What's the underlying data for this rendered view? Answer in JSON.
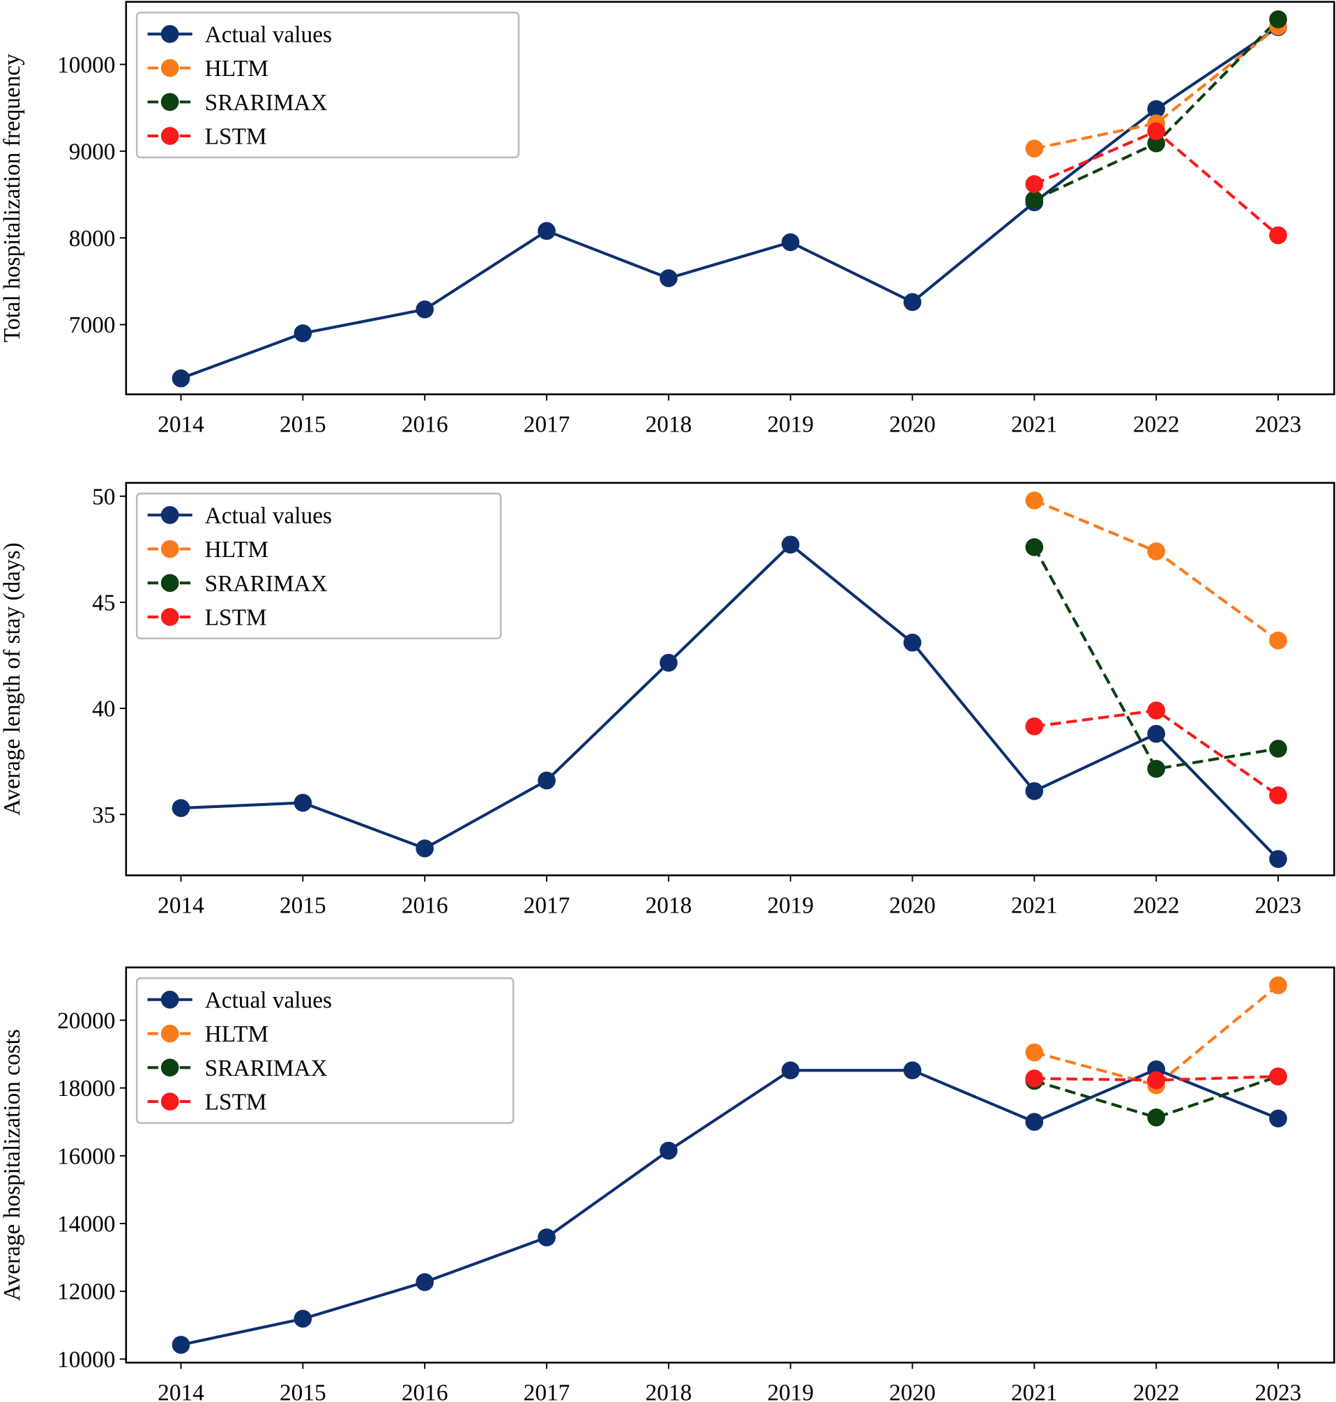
{
  "chart_data": [
    {
      "type": "line",
      "ylabel": "Total hospitalization frequency",
      "x": [
        2014,
        2015,
        2016,
        2017,
        2018,
        2019,
        2020,
        2021,
        2022,
        2023
      ],
      "xlim": [
        2013.55,
        2023.46
      ],
      "xticks": [
        2014,
        2015,
        2016,
        2017,
        2018,
        2019,
        2020,
        2021,
        2022,
        2023
      ],
      "ylim": [
        6196,
        10722
      ],
      "yticks": [
        7000,
        8000,
        9000,
        10000
      ],
      "legend": "upper left",
      "series": [
        {
          "name": "Actual values",
          "color": "#0d2f6e",
          "linestyle": "solid",
          "values": [
            6380,
            6900,
            7175,
            8080,
            7535,
            7950,
            7260,
            8410,
            9485,
            10430
          ]
        },
        {
          "name": "HLTM",
          "color": "#fb7a1c",
          "linestyle": "dashed",
          "values": [
            null,
            null,
            null,
            null,
            null,
            null,
            null,
            9030,
            9320,
            10440
          ]
        },
        {
          "name": "SRARIMAX",
          "color": "#0b4010",
          "linestyle": "dashed",
          "values": [
            null,
            null,
            null,
            null,
            null,
            null,
            null,
            8440,
            9090,
            10520
          ]
        },
        {
          "name": "LSTM",
          "color": "#f91a1a",
          "linestyle": "dashed",
          "values": [
            null,
            null,
            null,
            null,
            null,
            null,
            null,
            8620,
            9230,
            8030
          ]
        }
      ]
    },
    {
      "type": "line",
      "ylabel": "Average length of stay (days)",
      "x": [
        2014,
        2015,
        2016,
        2017,
        2018,
        2019,
        2020,
        2021,
        2022,
        2023
      ],
      "xlim": [
        2013.55,
        2023.46
      ],
      "xticks": [
        2014,
        2015,
        2016,
        2017,
        2018,
        2019,
        2020,
        2021,
        2022,
        2023
      ],
      "ylim": [
        32.13,
        50.63
      ],
      "yticks": [
        35,
        40,
        45,
        50
      ],
      "legend": "upper left",
      "series": [
        {
          "name": "Actual values",
          "color": "#0d2f6e",
          "linestyle": "solid",
          "values": [
            35.3,
            35.55,
            33.4,
            36.6,
            42.15,
            47.72,
            43.1,
            36.1,
            38.8,
            32.9
          ]
        },
        {
          "name": "HLTM",
          "color": "#fb7a1c",
          "linestyle": "dashed",
          "values": [
            null,
            null,
            null,
            null,
            null,
            null,
            null,
            49.8,
            47.4,
            43.2
          ]
        },
        {
          "name": "SRARIMAX",
          "color": "#0b4010",
          "linestyle": "dashed",
          "values": [
            null,
            null,
            null,
            null,
            null,
            null,
            null,
            47.6,
            37.15,
            38.1
          ]
        },
        {
          "name": "LSTM",
          "color": "#f91a1a",
          "linestyle": "dashed",
          "values": [
            null,
            null,
            null,
            null,
            null,
            null,
            null,
            39.15,
            39.9,
            35.9
          ]
        }
      ]
    },
    {
      "type": "line",
      "ylabel": "Average hospitalization costs",
      "x": [
        2014,
        2015,
        2016,
        2017,
        2018,
        2019,
        2020,
        2021,
        2022,
        2023
      ],
      "xlim": [
        2013.55,
        2023.46
      ],
      "xticks": [
        2014,
        2015,
        2016,
        2017,
        2018,
        2019,
        2020,
        2021,
        2022,
        2023
      ],
      "ylim": [
        9895,
        21557
      ],
      "yticks": [
        10000,
        12000,
        14000,
        16000,
        18000,
        20000
      ],
      "legend": "upper left",
      "series": [
        {
          "name": "Actual values",
          "color": "#0d2f6e",
          "linestyle": "solid",
          "values": [
            10420,
            11190,
            12270,
            13590,
            16150,
            18520,
            18520,
            17000,
            18550,
            17100
          ]
        },
        {
          "name": "HLTM",
          "color": "#fb7a1c",
          "linestyle": "dashed",
          "values": [
            null,
            null,
            null,
            null,
            null,
            null,
            null,
            19050,
            18080,
            21030
          ]
        },
        {
          "name": "SRARIMAX",
          "color": "#0b4010",
          "linestyle": "dashed",
          "values": [
            null,
            null,
            null,
            null,
            null,
            null,
            null,
            18210,
            17130,
            18340
          ]
        },
        {
          "name": "LSTM",
          "color": "#f91a1a",
          "linestyle": "dashed",
          "values": [
            null,
            null,
            null,
            null,
            null,
            null,
            null,
            18280,
            18230,
            18340
          ]
        }
      ]
    }
  ]
}
